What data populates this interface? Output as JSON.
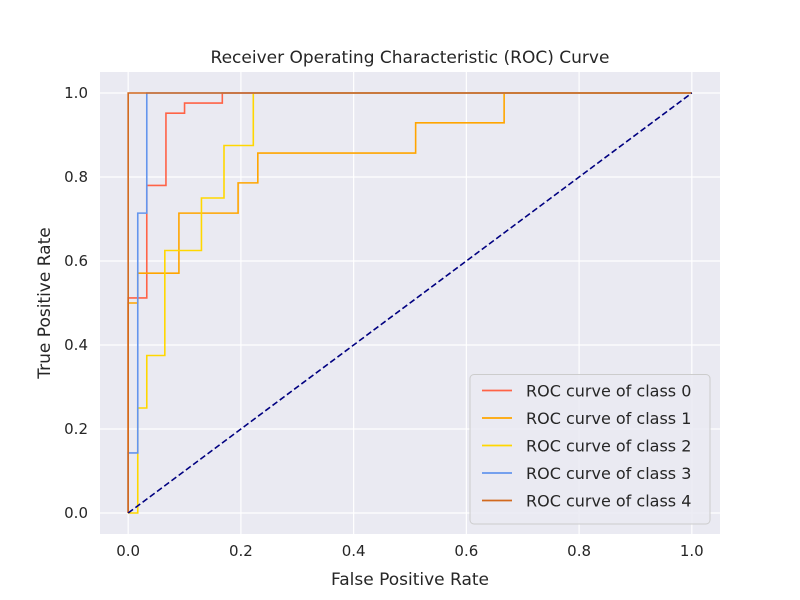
{
  "chart_data": {
    "type": "line",
    "title": "Receiver Operating Characteristic (ROC) Curve",
    "xlabel": "False Positive Rate",
    "ylabel": "True Positive Rate",
    "xlim": [
      -0.05,
      1.05
    ],
    "ylim": [
      -0.05,
      1.05
    ],
    "xticks": [
      0.0,
      0.2,
      0.4,
      0.6,
      0.8,
      1.0
    ],
    "yticks": [
      0.0,
      0.2,
      0.4,
      0.6,
      0.8,
      1.0
    ],
    "xtick_labels": [
      "0.0",
      "0.2",
      "0.4",
      "0.6",
      "0.8",
      "1.0"
    ],
    "ytick_labels": [
      "0.0",
      "0.2",
      "0.4",
      "0.6",
      "0.8",
      "1.0"
    ],
    "grid": true,
    "background": "#eaeaf2",
    "legend_position": "lower-right",
    "series": [
      {
        "name": "ROC curve of class 0",
        "color": "#ff6347",
        "x": [
          0.0,
          0.0,
          0.0,
          0.0,
          0.033,
          0.033,
          0.067,
          0.067,
          0.1,
          0.1,
          0.167,
          0.167,
          1.0
        ],
        "y": [
          0.0,
          0.025,
          0.5,
          0.512,
          0.512,
          0.78,
          0.78,
          0.952,
          0.952,
          0.976,
          0.976,
          1.0,
          1.0
        ]
      },
      {
        "name": "ROC curve of class 1",
        "color": "#ffa500",
        "x": [
          0.0,
          0.0,
          0.017,
          0.017,
          0.09,
          0.09,
          0.195,
          0.195,
          0.23,
          0.23,
          0.51,
          0.51,
          0.667,
          0.667,
          1.0
        ],
        "y": [
          0.0,
          0.5,
          0.5,
          0.571,
          0.571,
          0.714,
          0.714,
          0.786,
          0.786,
          0.857,
          0.857,
          0.929,
          0.929,
          1.0,
          1.0
        ]
      },
      {
        "name": "ROC curve of class 2",
        "color": "#ffd700",
        "x": [
          0.0,
          0.017,
          0.017,
          0.033,
          0.033,
          0.065,
          0.065,
          0.13,
          0.13,
          0.17,
          0.17,
          0.222,
          0.222,
          1.0
        ],
        "y": [
          0.0,
          0.0,
          0.25,
          0.25,
          0.375,
          0.375,
          0.625,
          0.625,
          0.75,
          0.75,
          0.875,
          0.875,
          1.0,
          1.0
        ]
      },
      {
        "name": "ROC curve of class 3",
        "color": "#6495ed",
        "x": [
          0.0,
          0.0,
          0.017,
          0.017,
          0.033,
          0.033,
          1.0
        ],
        "y": [
          0.0,
          0.143,
          0.143,
          0.714,
          0.714,
          1.0,
          1.0
        ]
      },
      {
        "name": "ROC curve of class 4",
        "color": "#d2691e",
        "x": [
          0.0,
          0.0,
          1.0
        ],
        "y": [
          0.0,
          1.0,
          1.0
        ]
      }
    ],
    "diagonal": {
      "color": "#000080",
      "x": [
        0.0,
        1.0
      ],
      "y": [
        0.0,
        1.0
      ]
    }
  }
}
